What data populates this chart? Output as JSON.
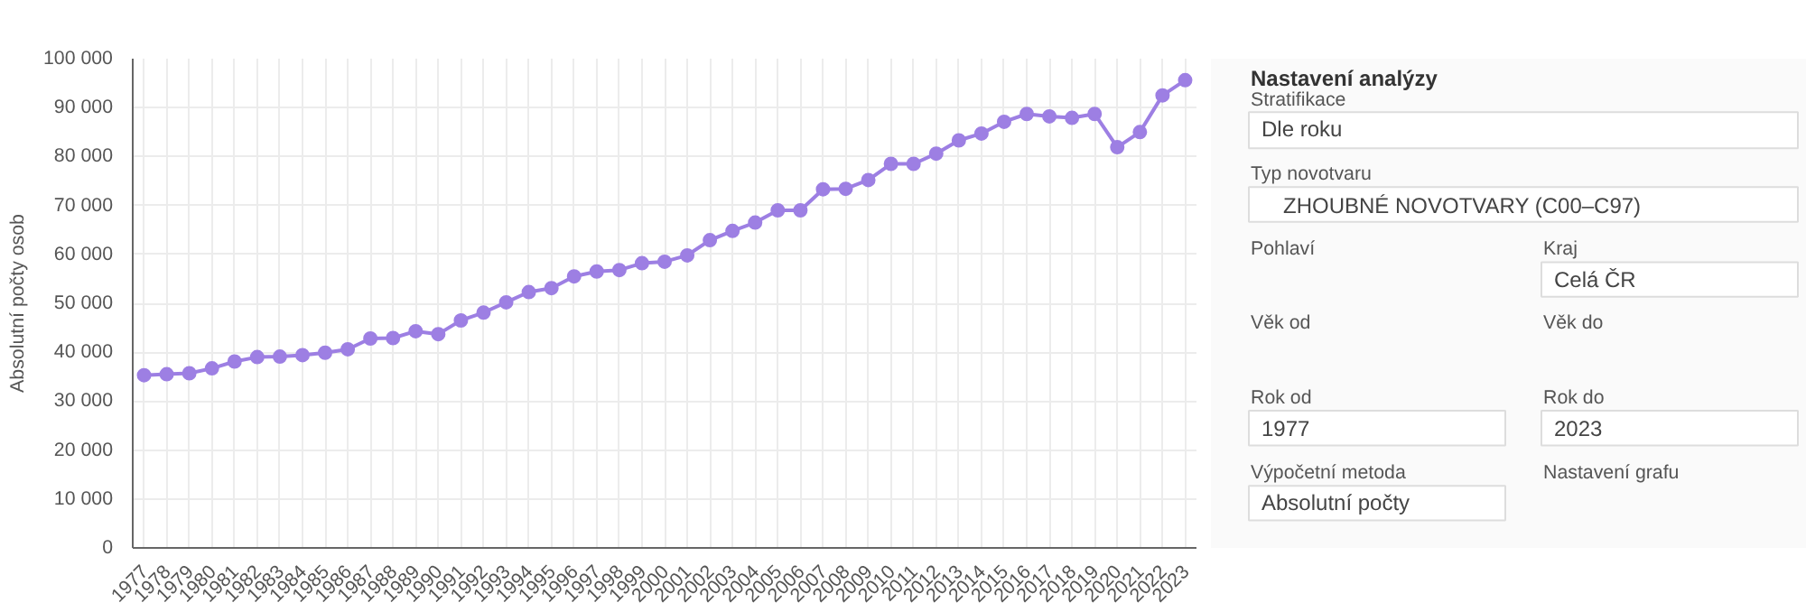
{
  "chart_data": [
    {
      "type": "line",
      "ylabel": "Absolutní počty osob",
      "categories": [
        "1977",
        "1978",
        "1979",
        "1980",
        "1981",
        "1982",
        "1983",
        "1984",
        "1985",
        "1986",
        "1987",
        "1988",
        "1989",
        "1990",
        "1991",
        "1992",
        "1993",
        "1994",
        "1995",
        "1996",
        "1997",
        "1998",
        "1999",
        "2000",
        "2001",
        "2002",
        "2003",
        "2004",
        "2005",
        "2006",
        "2007",
        "2008",
        "2009",
        "2010",
        "2011",
        "2012",
        "2013",
        "2014",
        "2015",
        "2016",
        "2017",
        "2018",
        "2019",
        "2020",
        "2021",
        "2022",
        "2023"
      ],
      "series": [
        {
          "color": "#9d7fe3",
          "values": [
            35300,
            35500,
            35700,
            36700,
            38100,
            39000,
            39100,
            39400,
            39900,
            40600,
            42800,
            42900,
            44300,
            43700,
            46500,
            48100,
            50200,
            52300,
            53100,
            55500,
            56500,
            56800,
            58200,
            58500,
            59800,
            62900,
            64800,
            66500,
            69000,
            69000,
            73300,
            73400,
            75200,
            78500,
            78500,
            80600,
            83300,
            84700,
            87100,
            88700,
            88200,
            87900,
            88700,
            81900,
            85000,
            92500,
            95600
          ]
        }
      ],
      "ylim": [
        0,
        100000
      ],
      "yticks": [
        {
          "value": 0,
          "label": "0"
        },
        {
          "value": 10000,
          "label": "10 000"
        },
        {
          "value": 20000,
          "label": "20 000"
        },
        {
          "value": 30000,
          "label": "30 000"
        },
        {
          "value": 40000,
          "label": "40 000"
        },
        {
          "value": 50000,
          "label": "50 000"
        },
        {
          "value": 60000,
          "label": "60 000"
        },
        {
          "value": 70000,
          "label": "70 000"
        },
        {
          "value": 80000,
          "label": "80 000"
        },
        {
          "value": 90000,
          "label": "90 000"
        },
        {
          "value": 100000,
          "label": "100 000"
        }
      ],
      "grid": true,
      "marker": "circle",
      "line_style": "solid"
    },
    {
      "type": "other",
      "title": "Nastavení analýzy",
      "annotations": [
        "Stratifikace",
        "Dle roku",
        "Typ novotvaru",
        "ZHOUBNÉ NOVOTVARY (C00–C97)",
        "Pohlaví",
        "Kraj",
        "Celá ČR",
        "Věk od",
        "Věk do",
        "Rok od",
        "Rok do",
        "1977",
        "2023",
        "Výpočetní metoda",
        "Nastavení grafu",
        "Absolutní počty"
      ]
    }
  ]
}
